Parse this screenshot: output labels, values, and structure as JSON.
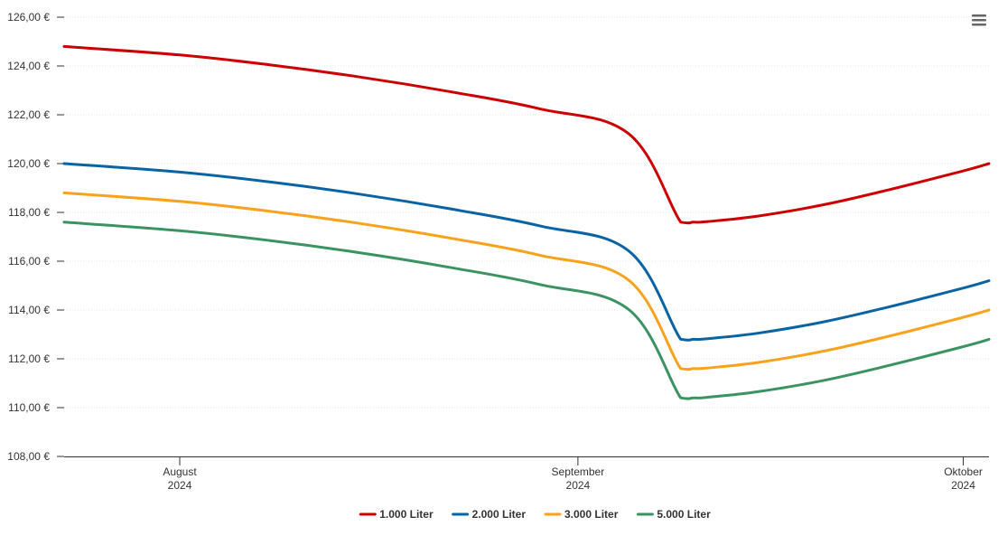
{
  "menu": {
    "icon": "hamburger-menu-icon"
  },
  "colors": {
    "grid": "#e6e6e6",
    "axis": "#333333",
    "text": "#333333"
  },
  "chart_data": {
    "type": "line",
    "title": "",
    "xlabel": "",
    "ylabel": "",
    "ylim": [
      108,
      126
    ],
    "xlim": [
      "2024-07-23",
      "2024-10-03"
    ],
    "y_ticks": [
      {
        "value": 108,
        "label": "108,00 €"
      },
      {
        "value": 110,
        "label": "110,00 €"
      },
      {
        "value": 112,
        "label": "112,00 €"
      },
      {
        "value": 114,
        "label": "114,00 €"
      },
      {
        "value": 116,
        "label": "116,00 €"
      },
      {
        "value": 118,
        "label": "118,00 €"
      },
      {
        "value": 120,
        "label": "120,00 €"
      },
      {
        "value": 122,
        "label": "122,00 €"
      },
      {
        "value": 124,
        "label": "124,00 €"
      },
      {
        "value": 126,
        "label": "126,00 €"
      }
    ],
    "x_ticks": [
      {
        "date": "2024-08-01",
        "month": "August",
        "year": "2024"
      },
      {
        "date": "2024-09-01",
        "month": "September",
        "year": "2024"
      },
      {
        "date": "2024-10-01",
        "month": "Oktober",
        "year": "2024"
      }
    ],
    "grid": true,
    "legend_position": "bottom-center",
    "x": [
      "2024-07-23",
      "2024-08-01",
      "2024-08-08",
      "2024-08-15",
      "2024-08-22",
      "2024-08-29",
      "2024-09-05",
      "2024-09-09",
      "2024-09-10",
      "2024-09-11",
      "2024-09-15",
      "2024-09-20",
      "2024-09-25",
      "2024-10-01",
      "2024-10-03"
    ],
    "series": [
      {
        "name": "1.000 Liter",
        "color": "#cc0000",
        "values": [
          124.8,
          124.45,
          124.05,
          123.55,
          122.95,
          122.25,
          121.2,
          117.6,
          117.6,
          117.62,
          117.85,
          118.3,
          118.9,
          119.7,
          120.0
        ]
      },
      {
        "name": "2.000 Liter",
        "color": "#0a64a4",
        "values": [
          120.0,
          119.65,
          119.25,
          118.75,
          118.15,
          117.45,
          116.4,
          112.8,
          112.8,
          112.82,
          113.05,
          113.5,
          114.1,
          114.9,
          115.2
        ]
      },
      {
        "name": "3.000 Liter",
        "color": "#f9a21d",
        "values": [
          118.8,
          118.45,
          118.05,
          117.55,
          116.95,
          116.25,
          115.2,
          111.6,
          111.6,
          111.62,
          111.85,
          112.3,
          112.9,
          113.7,
          114.0
        ]
      },
      {
        "name": "5.000 Liter",
        "color": "#3a9360",
        "values": [
          117.6,
          117.25,
          116.85,
          116.35,
          115.75,
          115.05,
          114.0,
          110.4,
          110.4,
          110.42,
          110.65,
          111.1,
          111.7,
          112.5,
          112.8
        ]
      }
    ]
  }
}
